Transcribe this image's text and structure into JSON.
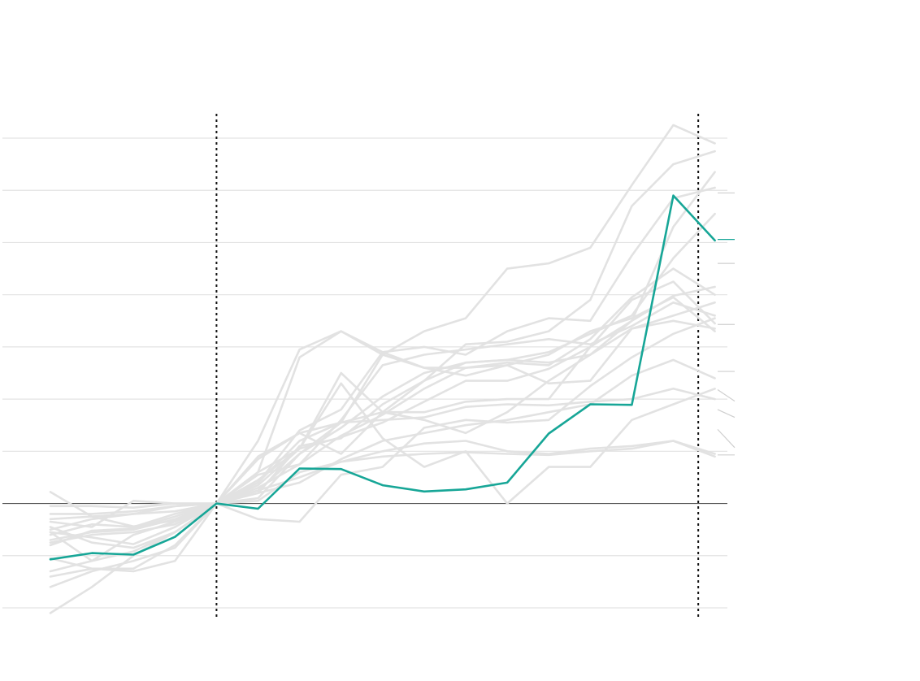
{
  "colors": {
    "highlight": "#17a697",
    "other": "#e2e2e2",
    "grid": "#e3e3e3",
    "baseline": "#555555",
    "marker": "#111111"
  },
  "chart_data": {
    "type": "line",
    "title": "",
    "xlabel": "",
    "ylabel": "",
    "x": [
      0,
      1,
      2,
      3,
      4,
      5,
      6,
      7,
      8,
      9,
      10,
      11,
      12,
      13,
      14,
      15,
      16
    ],
    "xlim": [
      -0.18,
      16.3
    ],
    "ylim": [
      -2.2,
      7.55
    ],
    "y_gridlines": [
      -2,
      -1,
      1,
      2,
      3,
      4,
      5,
      6,
      7
    ],
    "baseline": 0,
    "markers_x": [
      4,
      15.6
    ],
    "grid": true,
    "legend": "none",
    "series": [
      {
        "highlight": false,
        "values": [
          0.22,
          -0.25,
          -0.44,
          -0.33,
          0,
          0.45,
          1.05,
          1.27,
          1.55,
          1.95,
          2.35,
          2.35,
          2.58,
          3.0,
          3.5,
          3.98,
          4.15
        ]
      },
      {
        "highlight": false,
        "values": [
          -0.8,
          -0.52,
          -0.48,
          -0.25,
          0,
          0.35,
          1.05,
          2.5,
          1.75,
          1.6,
          1.35,
          1.75,
          2.35,
          2.85,
          3.35,
          3.6,
          3.85
        ]
      },
      {
        "highlight": false,
        "values": [
          -1.3,
          -1.1,
          -0.92,
          -0.55,
          0,
          0.6,
          2.8,
          3.3,
          2.9,
          2.6,
          2.45,
          2.65,
          2.85,
          3.3,
          3.55,
          3.95,
          3.3
        ]
      },
      {
        "highlight": false,
        "values": [
          -0.6,
          -0.4,
          -0.45,
          -0.2,
          0,
          0.1,
          0.95,
          1.55,
          1.6,
          1.65,
          1.85,
          1.9,
          1.88,
          1.95,
          2.0,
          2.2,
          2.0
        ]
      },
      {
        "highlight": false,
        "values": [
          -0.2,
          -0.2,
          -0.15,
          -0.05,
          0,
          0.25,
          0.5,
          0.8,
          1.0,
          1.15,
          1.2,
          1.0,
          0.95,
          1.05,
          1.1,
          1.2,
          0.9
        ]
      },
      {
        "highlight": false,
        "values": [
          -1.6,
          -1.3,
          -1.1,
          -0.85,
          0,
          -0.3,
          -0.35,
          0.55,
          0.7,
          1.45,
          1.6,
          1.55,
          1.6,
          2.25,
          2.8,
          3.25,
          3.55
        ]
      },
      {
        "highlight": false,
        "values": [
          -1.05,
          -1.25,
          -1.3,
          -1.1,
          0,
          0.25,
          0.95,
          1.45,
          2.05,
          2.5,
          2.7,
          2.75,
          2.9,
          3.25,
          3.6,
          4.7,
          5.55
        ]
      },
      {
        "highlight": false,
        "values": [
          -1.4,
          -1.25,
          -1.25,
          -0.8,
          0,
          0.3,
          0.75,
          1.6,
          2.65,
          2.85,
          2.95,
          3.05,
          3.15,
          3.05,
          3.4,
          3.85,
          3.6
        ]
      },
      {
        "highlight": false,
        "values": [
          -0.7,
          -0.55,
          -0.5,
          -0.3,
          0,
          0.55,
          0.75,
          1.3,
          1.7,
          2.2,
          2.6,
          2.65,
          2.3,
          2.35,
          3.35,
          3.5,
          3.35
        ]
      },
      {
        "highlight": false,
        "values": [
          -0.55,
          -0.65,
          -0.78,
          -0.45,
          0,
          0.85,
          1.35,
          0.95,
          1.75,
          1.75,
          1.95,
          2.0,
          2.0,
          3.0,
          3.9,
          4.25,
          3.45
        ]
      },
      {
        "highlight": false,
        "values": [
          -2.1,
          -1.6,
          -1.0,
          -0.55,
          0,
          0.4,
          1.4,
          1.8,
          2.9,
          3.0,
          2.85,
          3.3,
          3.55,
          3.5,
          4.75,
          5.85,
          6.05
        ]
      },
      {
        "highlight": false,
        "values": [
          -0.35,
          -0.45,
          0.05,
          0,
          0,
          0.6,
          1.05,
          2.3,
          1.25,
          0.7,
          1.0,
          0,
          0.7,
          0.7,
          1.6,
          1.9,
          2.2
        ]
      },
      {
        "highlight": false,
        "values": [
          -0.55,
          -1.1,
          -0.6,
          -0.35,
          0,
          0.4,
          1.2,
          1.55,
          1.75,
          2.35,
          3.05,
          3.1,
          3.3,
          3.9,
          5.7,
          6.5,
          6.75
        ]
      },
      {
        "highlight": false,
        "values": [
          -0.45,
          -0.75,
          -0.85,
          -0.55,
          0,
          0.2,
          1.1,
          1.25,
          1.9,
          2.35,
          2.7,
          2.75,
          2.7,
          2.85,
          3.5,
          5.3,
          6.35
        ]
      },
      {
        "highlight": false,
        "values": [
          -0.75,
          -0.6,
          -0.55,
          -0.4,
          0,
          0.2,
          0.4,
          0.85,
          1.2,
          1.35,
          1.5,
          1.6,
          1.75,
          1.9,
          2.45,
          2.75,
          2.4
        ]
      },
      {
        "highlight": false,
        "values": [
          -0.05,
          -0.05,
          -0.08,
          0,
          0,
          1.2,
          2.95,
          3.3,
          2.85,
          2.6,
          2.6,
          2.7,
          2.65,
          3.15,
          3.95,
          4.5,
          4.0
        ]
      },
      {
        "highlight": false,
        "values": [
          -0.5,
          -0.3,
          -0.2,
          -0.05,
          0,
          0.9,
          1.35,
          1.55,
          2.85,
          3.3,
          3.55,
          4.5,
          4.6,
          4.9,
          6.1,
          7.25,
          6.9
        ]
      },
      {
        "highlight": false,
        "values": [
          -0.3,
          -0.25,
          -0.2,
          -0.15,
          0,
          0.05,
          0.6,
          0.8,
          0.9,
          0.95,
          0.98,
          0.95,
          0.93,
          1.0,
          1.05,
          1.2,
          0.95
        ]
      },
      {
        "highlight": true,
        "values": [
          -1.07,
          -0.95,
          -0.98,
          -0.64,
          0,
          -0.1,
          0.67,
          0.66,
          0.35,
          0.23,
          0.27,
          0.4,
          1.34,
          1.9,
          1.89,
          5.9,
          5.04
        ]
      }
    ],
    "end_ticks": [
      {
        "y": 5.95,
        "slant": 0,
        "highlight": false
      },
      {
        "y": 5.06,
        "slant": 0,
        "highlight": true
      },
      {
        "y": 4.6,
        "slant": 0,
        "highlight": false
      },
      {
        "y": 3.43,
        "slant": 0,
        "highlight": false
      },
      {
        "y": 2.53,
        "slant": 0,
        "highlight": false
      },
      {
        "y": 2.18,
        "slant": -0.22,
        "highlight": false
      },
      {
        "y": 1.8,
        "slant": -0.15,
        "highlight": false
      },
      {
        "y": 1.42,
        "slant": -0.35,
        "highlight": false
      },
      {
        "y": 0.93,
        "slant": 0,
        "highlight": false
      }
    ]
  }
}
